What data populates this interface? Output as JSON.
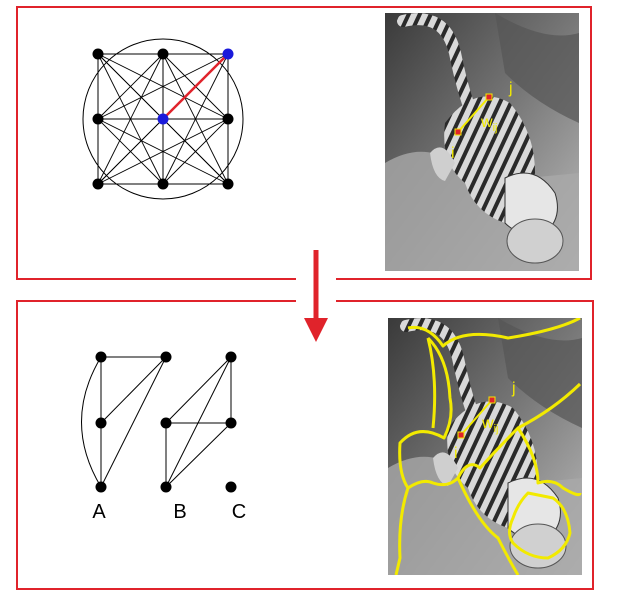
{
  "colors": {
    "frame": "#e0232b",
    "arrow": "#e0232b",
    "node_black": "#000000",
    "node_blue": "#1a1adb",
    "selected_edge": "#e0232b",
    "contour": "#f2ea00",
    "annotation": "#f2ea00",
    "pixel_marker": "#e0232b"
  },
  "top_panel": {
    "graph": {
      "kind": "fully-connected 3x3 pixel graph",
      "highlighted_edge": "between two blue nodes"
    },
    "photo": {
      "subject": "grayscale tiger image",
      "labels": {
        "node_i": "i",
        "node_j": "j",
        "weight": "w",
        "weight_sub": "ij"
      }
    }
  },
  "bottom_panel": {
    "graph": {
      "kind": "partitioned graph",
      "segment_labels": [
        "A",
        "B",
        "C"
      ]
    },
    "photo": {
      "subject": "grayscale tiger image with yellow segmentation contours",
      "labels": {
        "node_i": "i",
        "node_j": "j",
        "weight": "w",
        "weight_sub": "ij"
      }
    }
  },
  "arrow": {
    "direction": "down"
  }
}
